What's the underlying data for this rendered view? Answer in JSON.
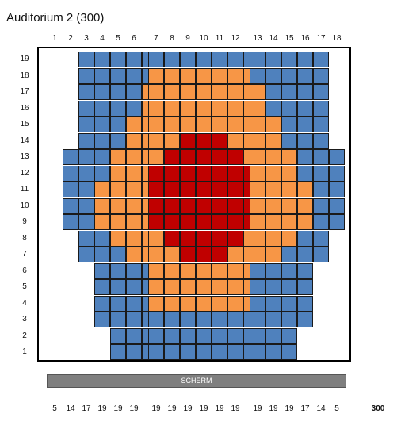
{
  "title": "Auditorium 2 (300)",
  "screen_label": "SCHERM",
  "total_label": "300",
  "colors": {
    "blue": "#4f81bd",
    "orange": "#f79646",
    "red": "#c00000"
  },
  "seat_columns": [
    "1",
    "2",
    "3",
    "4",
    "5",
    "6",
    "7",
    "8",
    "9",
    "10",
    "11",
    "12",
    "13",
    "14",
    "15",
    "16",
    "17",
    "18"
  ],
  "row_labels": [
    "19",
    "18",
    "17",
    "16",
    "15",
    "14",
    "13",
    "12",
    "11",
    "10",
    "9",
    "8",
    "7",
    "6",
    "5",
    "4",
    "3",
    "2",
    "1"
  ],
  "seat_counts": [
    "5",
    "14",
    "17",
    "19",
    "19",
    "19",
    "19",
    "19",
    "19",
    "19",
    "19",
    "19",
    "19",
    "19",
    "19",
    "17",
    "14",
    "5"
  ],
  "seat_map": [
    "..BBBBB.BBBBBBB.BBBBB..",
    "..BBBBB.OOOOOOO.BBBBB..",
    "..BBBBO.OOOOOOO.OBBBB..",
    "..BBBBO.OOOOOOO.OBBBB..",
    "..BBBOO.OOOOOOO.OOBBB..",
    "..BBBOO.OORRROO.OOBBB..",
    ".BBBOOO.ORRRRRO.OOOBBB.",
    ".BBBOOO.RRRRRRR.OOOBBB.",
    ".BBOOOO.RRRRRRR.OOOOBB.",
    ".BBOOOO.RRRRRRR.OOOOBB.",
    ".BBOOOO.RRRRRRR.OOOOBB.",
    "..BBOOO.ORRRRRO.OOOBB..",
    "..BBBOO.OORRROO.OOBBB..",
    "...BBBB.OOOOOOO.BBBB...",
    "...BBBB.OOOOOOO.BBBB...",
    "...BBBB.OOOOOOO.BBBB...",
    "...BBBB.BBBBBBB.BBBB...",
    "....BBB.BBBBBBB.BBB....",
    "....BBB.BBBBBBB.BBB...."
  ]
}
